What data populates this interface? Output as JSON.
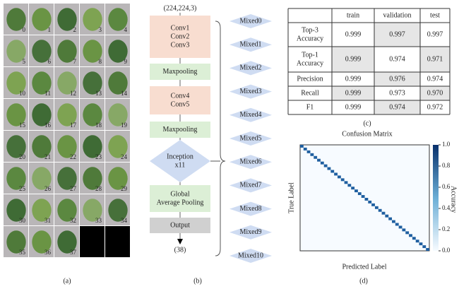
{
  "panel_a": {
    "tiles": [
      0,
      1,
      2,
      3,
      4,
      5,
      6,
      7,
      8,
      9,
      10,
      11,
      12,
      13,
      14,
      15,
      16,
      17,
      18,
      19,
      20,
      21,
      22,
      23,
      24,
      25,
      26,
      27,
      28,
      29,
      30,
      31,
      32,
      33,
      34,
      35,
      36,
      37
    ],
    "caption": "(a)"
  },
  "panel_b": {
    "input": "(224,224,3)",
    "blocks": [
      {
        "lines": [
          "Conv1",
          "Conv2",
          "Conv3"
        ]
      },
      {
        "lines": [
          "Maxpooling"
        ]
      },
      {
        "lines": [
          "Conv4",
          "Conv5"
        ]
      },
      {
        "lines": [
          "Maxpooling"
        ]
      },
      {
        "lines": [
          "Inception",
          "x11"
        ]
      },
      {
        "lines": [
          "Global",
          "Average Pooling"
        ]
      },
      {
        "lines": [
          "Output"
        ]
      }
    ],
    "output_shape": "(38)",
    "mixed": [
      "Mixed0",
      "Mixed1",
      "Mixed2",
      "Mixed3",
      "Mixed4",
      "Mixed5",
      "Mixed6",
      "Mixed7",
      "Mixed8",
      "Mixed9",
      "Mixed10"
    ],
    "caption": "(b)"
  },
  "panel_c": {
    "columns": [
      "train",
      "validation",
      "test"
    ],
    "rows": [
      {
        "label": [
          "Top-3",
          "Accuracy"
        ],
        "values": [
          "0.999",
          "0.997",
          "0.997"
        ]
      },
      {
        "label": [
          "Top-1",
          "Accuracy"
        ],
        "values": [
          "0.999",
          "0.974",
          "0.971"
        ]
      },
      {
        "label": [
          "Precision"
        ],
        "values": [
          "0.999",
          "0.976",
          "0.974"
        ]
      },
      {
        "label": [
          "Recall"
        ],
        "values": [
          "0.999",
          "0.973",
          "0.970"
        ]
      },
      {
        "label": [
          "F1"
        ],
        "values": [
          "0.999",
          "0.974",
          "0.972"
        ]
      }
    ],
    "caption": "(c)"
  },
  "panel_d": {
    "title": "Confusion Matrix",
    "x_label": "Predicted Label",
    "y_label": "True Label",
    "colorbar_label": "Accuracy",
    "colorbar_ticks": [
      {
        "value": 1.0,
        "label": "1.0"
      },
      {
        "value": 0.8,
        "label": "0.8"
      },
      {
        "value": 0.6,
        "label": "0.6"
      },
      {
        "value": 0.4,
        "label": "0.4"
      },
      {
        "value": 0.2,
        "label": "0.2"
      },
      {
        "value": 0,
        "label": "0.0"
      }
    ],
    "caption": "(d)"
  }
}
